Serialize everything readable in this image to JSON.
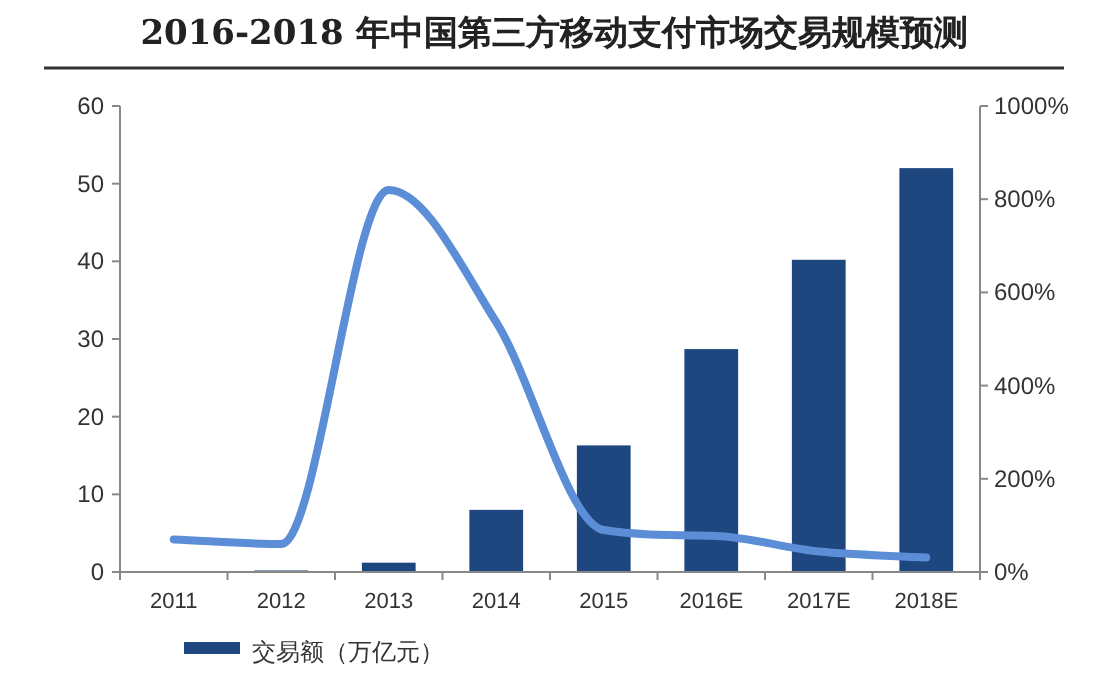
{
  "chart_data": {
    "type": "bar",
    "title": "2016-2018 年中国第三方移动支付市场交易规模预测",
    "categories": [
      "2011",
      "2012",
      "2013",
      "2014",
      "2015",
      "2016E",
      "2017E",
      "2018E"
    ],
    "series": [
      {
        "name": "交易额（万亿元）",
        "color": "#1f477f",
        "values": [
          0.1,
          0.2,
          1.2,
          8,
          16.3,
          28.7,
          40.2,
          52
        ]
      },
      {
        "type": "line",
        "axis": "y2",
        "color": "#5b8ed6",
        "values": [
          70,
          60,
          820,
          536,
          90,
          78,
          44,
          31
        ]
      }
    ],
    "ylim": [
      0,
      60
    ],
    "yticks": [
      0,
      10,
      20,
      30,
      40,
      50,
      60
    ],
    "y2lim": [
      0,
      1000
    ],
    "y2ticks": [
      {
        "value": 0,
        "label": "0%"
      },
      {
        "value": 200,
        "label": "200%"
      },
      {
        "value": 400,
        "label": "400%"
      },
      {
        "value": 600,
        "label": "600%"
      },
      {
        "value": 800,
        "label": "800%"
      },
      {
        "value": 1000,
        "label": "1000%"
      }
    ],
    "legend": "bottom",
    "grid": false
  }
}
